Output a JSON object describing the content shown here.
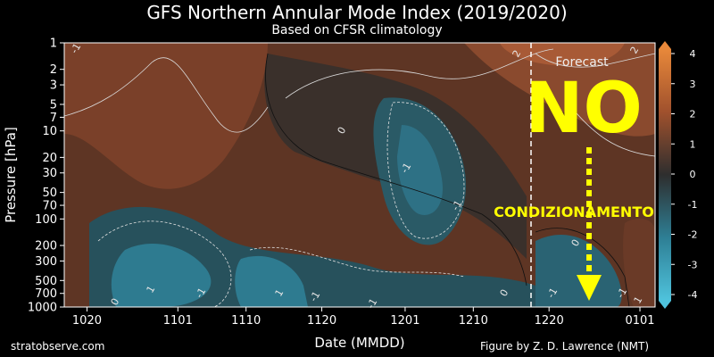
{
  "chart_data": {
    "type": "heatmap",
    "title": "GFS Northern Annular Mode Index (2019/2020)",
    "subtitle": "Based on CFSR climatology",
    "xlabel": "Date (MMDD)",
    "ylabel": "Pressure [hPa]",
    "x_ticks": [
      "1020",
      "1101",
      "1110",
      "1120",
      "1201",
      "1210",
      "1220",
      "0101"
    ],
    "y_ticks": [
      "1",
      "2",
      "3",
      "5",
      "7",
      "10",
      "20",
      "30",
      "50",
      "70",
      "100",
      "200",
      "300",
      "500",
      "700",
      "1000"
    ],
    "y_scale": "log",
    "colorbar_ticks": [
      "4",
      "3",
      "2",
      "1",
      "0",
      "-1",
      "-2",
      "-3",
      "-4"
    ],
    "colorbar_range": [
      -4,
      4
    ],
    "contour_labels": [
      "0",
      "-1",
      "-1",
      "0",
      "1",
      "-1",
      "1",
      "-1",
      "-1",
      "2",
      "0",
      "-1",
      "0",
      "2",
      "-1",
      "-1",
      "1"
    ],
    "forecast_label": "Forecast",
    "colors": {
      "positive": "#a0512d",
      "neutral": "#2e2e2e",
      "negative": "#2e7f95",
      "overlay_text": "#ffff00"
    }
  },
  "overlay": {
    "big_text": "NO",
    "annotation": "CONDIZIONAMENTO"
  },
  "credits": {
    "left": "stratobserve.com",
    "right": "Figure by Z. D. Lawrence (NMT)"
  }
}
